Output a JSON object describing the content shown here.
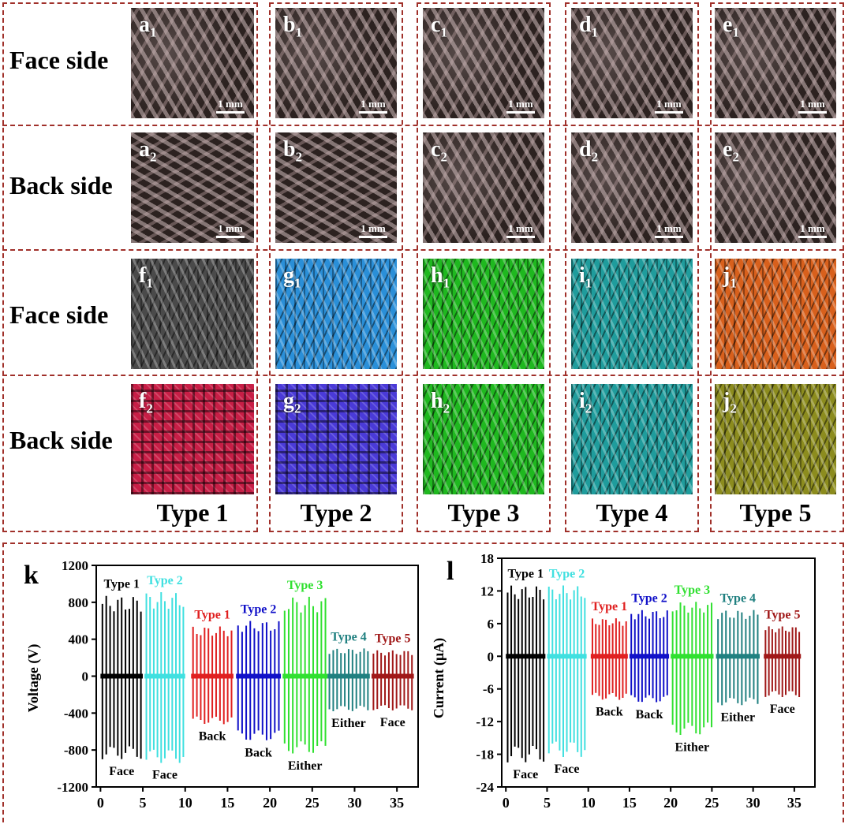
{
  "rows": [
    "Face side",
    "Back side",
    "Face side",
    "Back side"
  ],
  "types": [
    "Type 1",
    "Type 2",
    "Type 3",
    "Type 4",
    "Type 5"
  ],
  "panels_micro_face": [
    {
      "letter": "a",
      "sub": "1",
      "scale": "1 mm"
    },
    {
      "letter": "b",
      "sub": "1",
      "scale": "1 mm"
    },
    {
      "letter": "c",
      "sub": "1",
      "scale": "1 mm"
    },
    {
      "letter": "d",
      "sub": "1",
      "scale": "1 mm"
    },
    {
      "letter": "e",
      "sub": "1",
      "scale": "1 mm"
    }
  ],
  "panels_micro_back": [
    {
      "letter": "a",
      "sub": "2",
      "scale": "1 mm"
    },
    {
      "letter": "b",
      "sub": "2",
      "scale": "1 mm"
    },
    {
      "letter": "c",
      "sub": "2",
      "scale": "1 mm"
    },
    {
      "letter": "d",
      "sub": "2",
      "scale": "1 mm"
    },
    {
      "letter": "e",
      "sub": "2",
      "scale": "1 mm"
    }
  ],
  "panels_render_face": [
    {
      "letter": "f",
      "sub": "1",
      "color": "#4a4a4a"
    },
    {
      "letter": "g",
      "sub": "1",
      "color": "#2a8fd8"
    },
    {
      "letter": "h",
      "sub": "1",
      "color": "#1fb81f"
    },
    {
      "letter": "i",
      "sub": "1",
      "color": "#1f9c9c"
    },
    {
      "letter": "j",
      "sub": "1",
      "color": "#d8601c"
    }
  ],
  "panels_render_back": [
    {
      "letter": "f",
      "sub": "2",
      "color": "#c81e46"
    },
    {
      "letter": "g",
      "sub": "2",
      "color": "#4a3ad8"
    },
    {
      "letter": "h",
      "sub": "2",
      "color": "#1fb81f"
    },
    {
      "letter": "i",
      "sub": "2",
      "color": "#1f9c9c"
    },
    {
      "letter": "j",
      "sub": "2",
      "color": "#8c8c1e"
    }
  ],
  "chart_data": [
    {
      "panel": "k",
      "type": "line",
      "ylabel": "Voltage (V)",
      "xlim": [
        -0.5,
        37.5
      ],
      "ylim": [
        -1200,
        1200
      ],
      "xticks": [
        0,
        5,
        10,
        15,
        20,
        25,
        30,
        35
      ],
      "yticks": [
        -1200,
        -800,
        -400,
        0,
        400,
        800,
        1200
      ],
      "ytick_labels": [
        "-1200",
        "-800",
        "-400",
        "0",
        "400",
        "800",
        "1200"
      ],
      "series": [
        {
          "label": "Type 1",
          "mode": "Face",
          "color": "#000000",
          "x": [
            0,
            5
          ],
          "peak": 870,
          "trough": -900,
          "count": 11
        },
        {
          "label": "Type 2",
          "mode": "Face",
          "color": "#40e0e0",
          "x": [
            5.2,
            10
          ],
          "peak": 910,
          "trough": -940,
          "count": 11
        },
        {
          "label": "Type 1",
          "mode": "Back",
          "color": "#e02020",
          "x": [
            10.7,
            15.7
          ],
          "peak": 540,
          "trough": -520,
          "count": 11
        },
        {
          "label": "Type 2",
          "mode": "Back",
          "color": "#1010c8",
          "x": [
            16,
            21.3
          ],
          "peak": 600,
          "trough": -700,
          "count": 11
        },
        {
          "label": "Type 3",
          "mode": "Either",
          "color": "#30e030",
          "x": [
            21.5,
            26.8
          ],
          "peak": 860,
          "trough": -840,
          "count": 11
        },
        {
          "label": "Type 4",
          "mode": "Either",
          "color": "#208080",
          "x": [
            26.8,
            31.8
          ],
          "peak": 300,
          "trough": -380,
          "count": 11
        },
        {
          "label": "Type 5",
          "mode": "Face",
          "color": "#a01818",
          "x": [
            32,
            37
          ],
          "peak": 280,
          "trough": -370,
          "count": 11
        }
      ]
    },
    {
      "panel": "l",
      "type": "line",
      "ylabel": "Current (μA)",
      "xlim": [
        -0.5,
        37.5
      ],
      "ylim": [
        -24,
        18
      ],
      "xticks": [
        0,
        5,
        10,
        15,
        20,
        25,
        30,
        35
      ],
      "yticks": [
        -24,
        -18,
        -12,
        -6,
        0,
        6,
        12,
        18
      ],
      "ytick_labels": [
        "-24",
        "-18",
        "-12",
        "-6",
        "0",
        "6",
        "12",
        "18"
      ],
      "series": [
        {
          "label": "Type 1",
          "mode": "Face",
          "color": "#000000",
          "x": [
            0,
            4.8
          ],
          "peak": 13,
          "trough": -19.5,
          "count": 11
        },
        {
          "label": "Type 2",
          "mode": "Face",
          "color": "#40e0e0",
          "x": [
            5,
            9.8
          ],
          "peak": 13,
          "trough": -18.5,
          "count": 11
        },
        {
          "label": "Type 1",
          "mode": "Back",
          "color": "#e02020",
          "x": [
            10.3,
            14.8
          ],
          "peak": 7,
          "trough": -8,
          "count": 11
        },
        {
          "label": "Type 2",
          "mode": "Back",
          "color": "#1010c8",
          "x": [
            15,
            19.8
          ],
          "peak": 8.5,
          "trough": -8.5,
          "count": 11
        },
        {
          "label": "Type 3",
          "mode": "Either",
          "color": "#30e030",
          "x": [
            20,
            25.2
          ],
          "peak": 10,
          "trough": -14.5,
          "count": 11
        },
        {
          "label": "Type 4",
          "mode": "Either",
          "color": "#208080",
          "x": [
            25.5,
            30.8
          ],
          "peak": 8.5,
          "trough": -9,
          "count": 11
        },
        {
          "label": "Type 5",
          "mode": "Face",
          "color": "#a01818",
          "x": [
            31.3,
            35.8
          ],
          "peak": 5.5,
          "trough": -7.5,
          "count": 11
        }
      ]
    }
  ]
}
